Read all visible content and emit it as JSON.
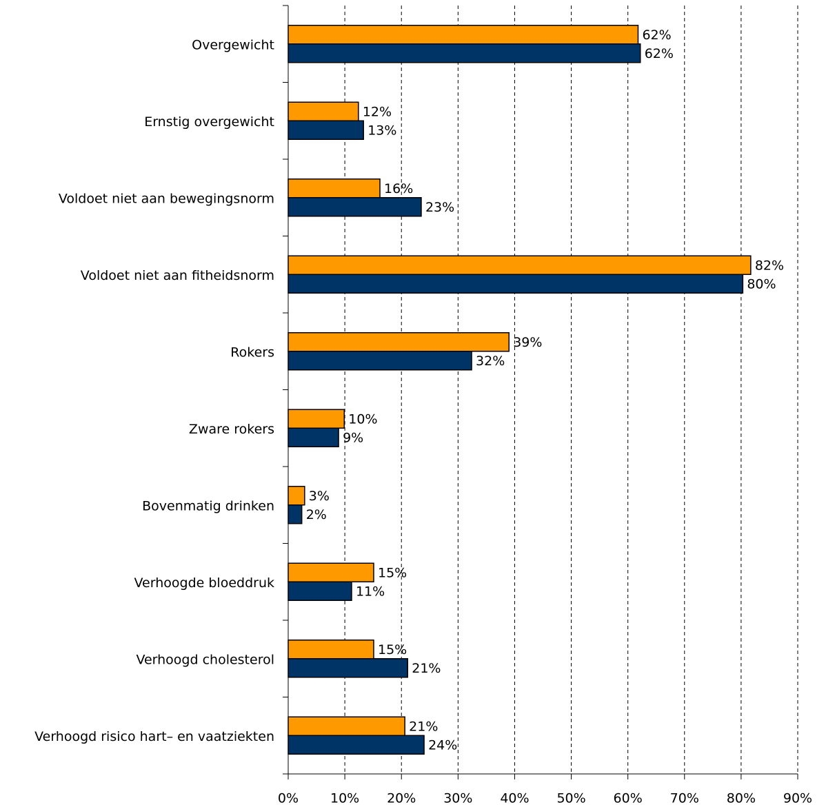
{
  "chart_data": {
    "type": "bar",
    "orientation": "horizontal",
    "categories": [
      "Overgewicht",
      "Ernstig overgewicht",
      "Voldoet niet aan bewegingsnorm",
      "Voldoet niet aan fitheidsnorm",
      "Rokers",
      "Zware rokers",
      "Bovenmatig drinken",
      "Verhoogde bloeddruk",
      "Verhoogd cholesterol",
      "Verhoogd risico hart– en vaatziekten"
    ],
    "series": [
      {
        "color": "#ff9900",
        "values": [
          61.8,
          12.4,
          16.2,
          81.7,
          39.0,
          9.9,
          2.9,
          15.1,
          15.1,
          20.6
        ],
        "value_labels": [
          "62%",
          "12%",
          "16%",
          "82%",
          "39%",
          "10%",
          "3%",
          "15%",
          "15%",
          "21%"
        ]
      },
      {
        "color": "#003366",
        "values": [
          62.2,
          13.3,
          23.5,
          80.3,
          32.4,
          8.9,
          2.4,
          11.2,
          21.1,
          24.0
        ],
        "value_labels": [
          "62%",
          "13%",
          "23%",
          "80%",
          "32%",
          "9%",
          "2%",
          "11%",
          "21%",
          "24%"
        ]
      }
    ],
    "xlim": [
      0,
      90
    ],
    "xticks": [
      {
        "value": 0,
        "label": "0%"
      },
      {
        "value": 10,
        "label": "10%"
      },
      {
        "value": 20,
        "label": "20%"
      },
      {
        "value": 30,
        "label": "30%"
      },
      {
        "value": 40,
        "label": "40%"
      },
      {
        "value": 50,
        "label": "50%"
      },
      {
        "value": 60,
        "label": "60%"
      },
      {
        "value": 70,
        "label": "70%"
      },
      {
        "value": 80,
        "label": "80%"
      },
      {
        "value": 90,
        "label": "90%"
      }
    ],
    "grid": true
  }
}
